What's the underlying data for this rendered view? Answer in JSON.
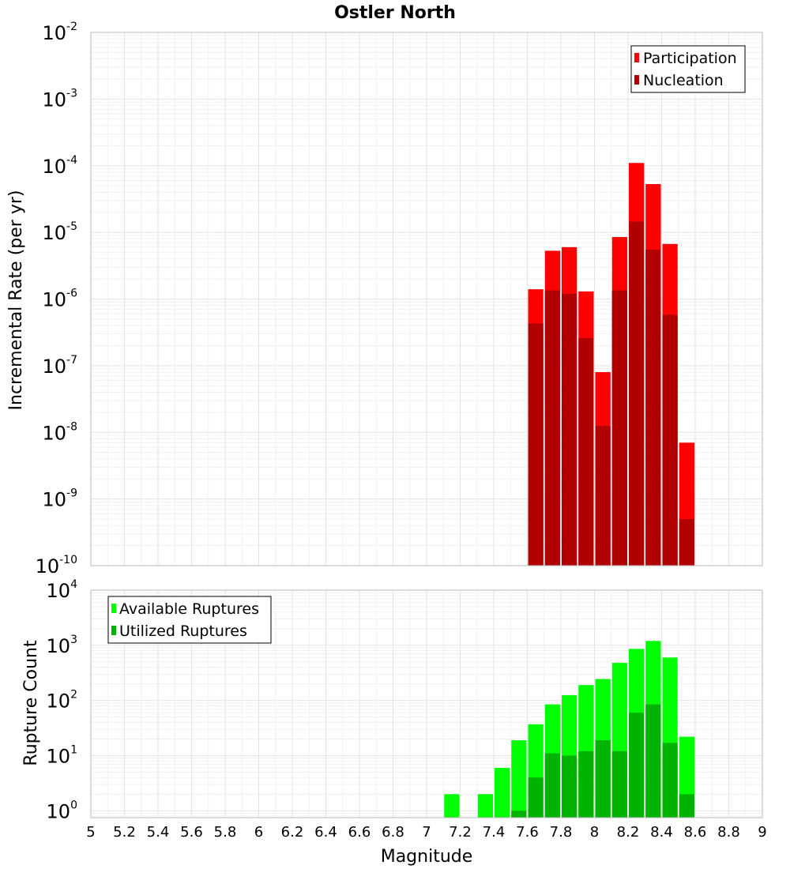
{
  "chart_data": [
    {
      "type": "bar",
      "title": "Ostler North",
      "xlabel": "",
      "ylabel": "Incremental Rate (per yr)",
      "yscale": "log",
      "ylim": [
        1e-10,
        0.01
      ],
      "xlim": [
        5,
        9
      ],
      "grid": true,
      "legend_position": "top-right",
      "x": [
        7.65,
        7.75,
        7.85,
        7.95,
        8.05,
        8.15,
        8.25,
        8.35,
        8.45,
        8.55
      ],
      "series": [
        {
          "name": "Participation",
          "color": "#ff0000",
          "values": [
            1.4e-06,
            5.3e-06,
            6e-06,
            1.3e-06,
            8e-08,
            8.5e-06,
            0.00011,
            5.3e-05,
            6.7e-06,
            7e-09
          ]
        },
        {
          "name": "Nucleation",
          "color": "#b20000",
          "values": [
            4.3e-07,
            1.35e-06,
            1.2e-06,
            2.6e-07,
            1.25e-08,
            1.35e-06,
            1.45e-05,
            5.5e-06,
            5.8e-07,
            5e-10
          ]
        }
      ]
    },
    {
      "type": "bar",
      "title": "",
      "xlabel": "Magnitude",
      "ylabel": "Rupture Count",
      "yscale": "log",
      "ylim": [
        0.75,
        10000
      ],
      "xlim": [
        5,
        9
      ],
      "grid": true,
      "legend_position": "top-left",
      "x": [
        7.15,
        7.35,
        7.45,
        7.55,
        7.65,
        7.75,
        7.85,
        7.95,
        8.05,
        8.15,
        8.25,
        8.35,
        8.45,
        8.55
      ],
      "series": [
        {
          "name": "Available Ruptures",
          "color": "#00ff00",
          "values": [
            2,
            2,
            6,
            19,
            37,
            85,
            125,
            190,
            245,
            480,
            860,
            1200,
            600,
            22
          ]
        },
        {
          "name": "Utilized Ruptures",
          "color": "#00b300",
          "values": [
            0,
            0,
            0,
            1,
            4,
            11,
            10,
            12,
            19,
            12,
            60,
            85,
            17,
            2
          ]
        }
      ]
    }
  ],
  "axes": {
    "x_ticks": [
      "5",
      "5.2",
      "5.4",
      "5.6",
      "5.8",
      "6",
      "6.2",
      "6.4",
      "6.6",
      "6.8",
      "7",
      "7.2",
      "7.4",
      "7.6",
      "7.8",
      "8",
      "8.2",
      "8.4",
      "8.6",
      "8.8",
      "9"
    ],
    "top_y_ticks": [
      {
        "base": "10",
        "exp": "-2"
      },
      {
        "base": "10",
        "exp": "-3"
      },
      {
        "base": "10",
        "exp": "-4"
      },
      {
        "base": "10",
        "exp": "-5"
      },
      {
        "base": "10",
        "exp": "-6"
      },
      {
        "base": "10",
        "exp": "-7"
      },
      {
        "base": "10",
        "exp": "-8"
      },
      {
        "base": "10",
        "exp": "-9"
      },
      {
        "base": "10",
        "exp": "-10"
      }
    ],
    "bottom_y_ticks": [
      {
        "base": "10",
        "exp": "4"
      },
      {
        "base": "10",
        "exp": "3"
      },
      {
        "base": "10",
        "exp": "2"
      },
      {
        "base": "10",
        "exp": "1"
      },
      {
        "base": "10",
        "exp": "0"
      }
    ]
  }
}
